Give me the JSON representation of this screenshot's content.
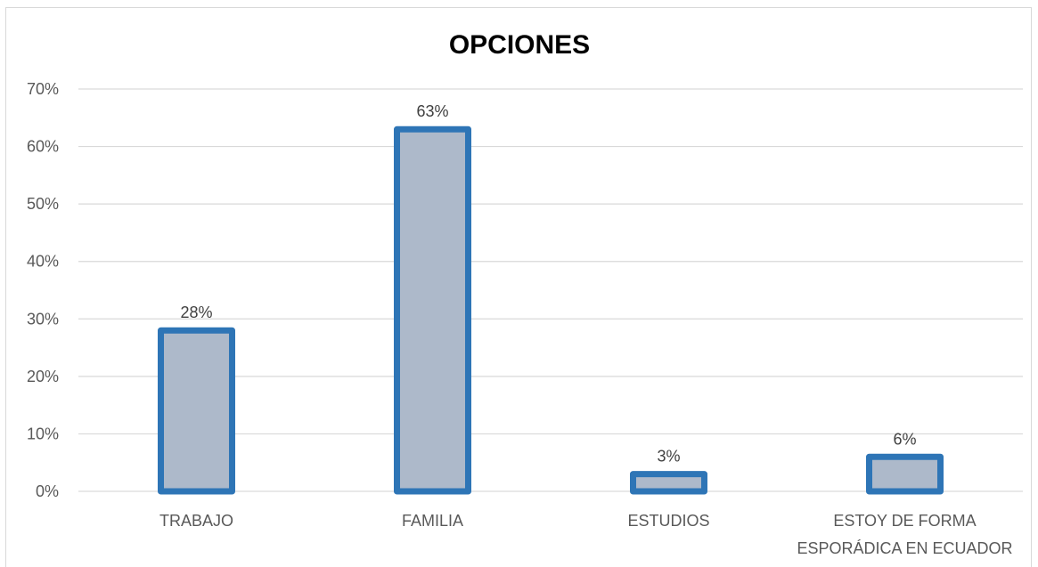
{
  "chart_data": {
    "type": "bar",
    "title": "OPCIONES",
    "categories": [
      "TRABAJO",
      "FAMILIA",
      "ESTUDIOS",
      "ESTOY DE FORMA ESPORÁDICA EN ECUADOR"
    ],
    "category_lines": [
      [
        "TRABAJO"
      ],
      [
        "FAMILIA"
      ],
      [
        "ESTUDIOS"
      ],
      [
        "ESTOY DE FORMA",
        "ESPORÁDICA EN ECUADOR"
      ]
    ],
    "values": [
      28,
      63,
      3,
      6
    ],
    "data_labels": [
      "28%",
      "63%",
      "3%",
      "6%"
    ],
    "y_ticks": [
      0,
      10,
      20,
      30,
      40,
      50,
      60,
      70
    ],
    "y_tick_labels": [
      "0%",
      "10%",
      "20%",
      "30%",
      "40%",
      "50%",
      "60%",
      "70%"
    ],
    "ylim": [
      0,
      70
    ],
    "xlabel": "",
    "ylabel": "",
    "grid": true,
    "legend": "none",
    "colors": {
      "bar_fill": "#adb9ca",
      "bar_border": "#2e75b6",
      "grid": "#d9d9d9",
      "axis": "#d9d9d9"
    }
  }
}
